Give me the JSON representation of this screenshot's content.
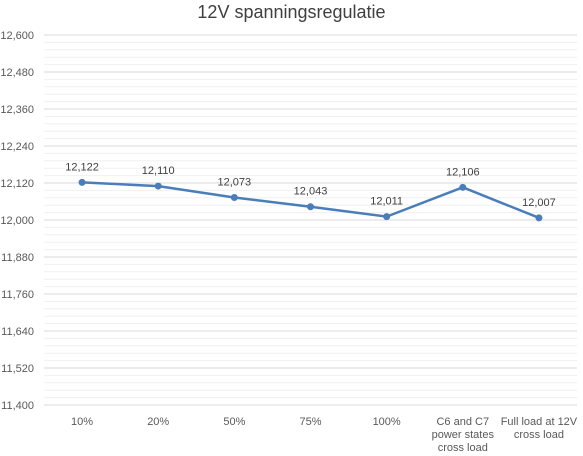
{
  "chart_data": {
    "type": "line",
    "title": "12V spanningsregulatie",
    "categories": [
      [
        "10%"
      ],
      [
        "20%"
      ],
      [
        "50%"
      ],
      [
        "75%"
      ],
      [
        "100%"
      ],
      [
        "C6 and C7",
        "power states",
        "cross load"
      ],
      [
        "Full load at 12V",
        "cross load"
      ]
    ],
    "values": [
      12.122,
      12.11,
      12.073,
      12.043,
      12.011,
      12.106,
      12.007
    ],
    "value_labels": [
      "12,122",
      "12,110",
      "12,073",
      "12,043",
      "12,011",
      "12,106",
      "12,007"
    ],
    "yticks": [
      "12,600",
      "12,480",
      "12,360",
      "12,240",
      "12,120",
      "12,000",
      "11,880",
      "11,760",
      "11,640",
      "11,520",
      "11,400"
    ],
    "ylim": [
      11.4,
      12.6
    ],
    "grid": true,
    "legend": "none",
    "colors": {
      "line": "#4a7ebb",
      "grid": "#d9d9d9",
      "minor_grid": "#f0f0f0"
    }
  }
}
